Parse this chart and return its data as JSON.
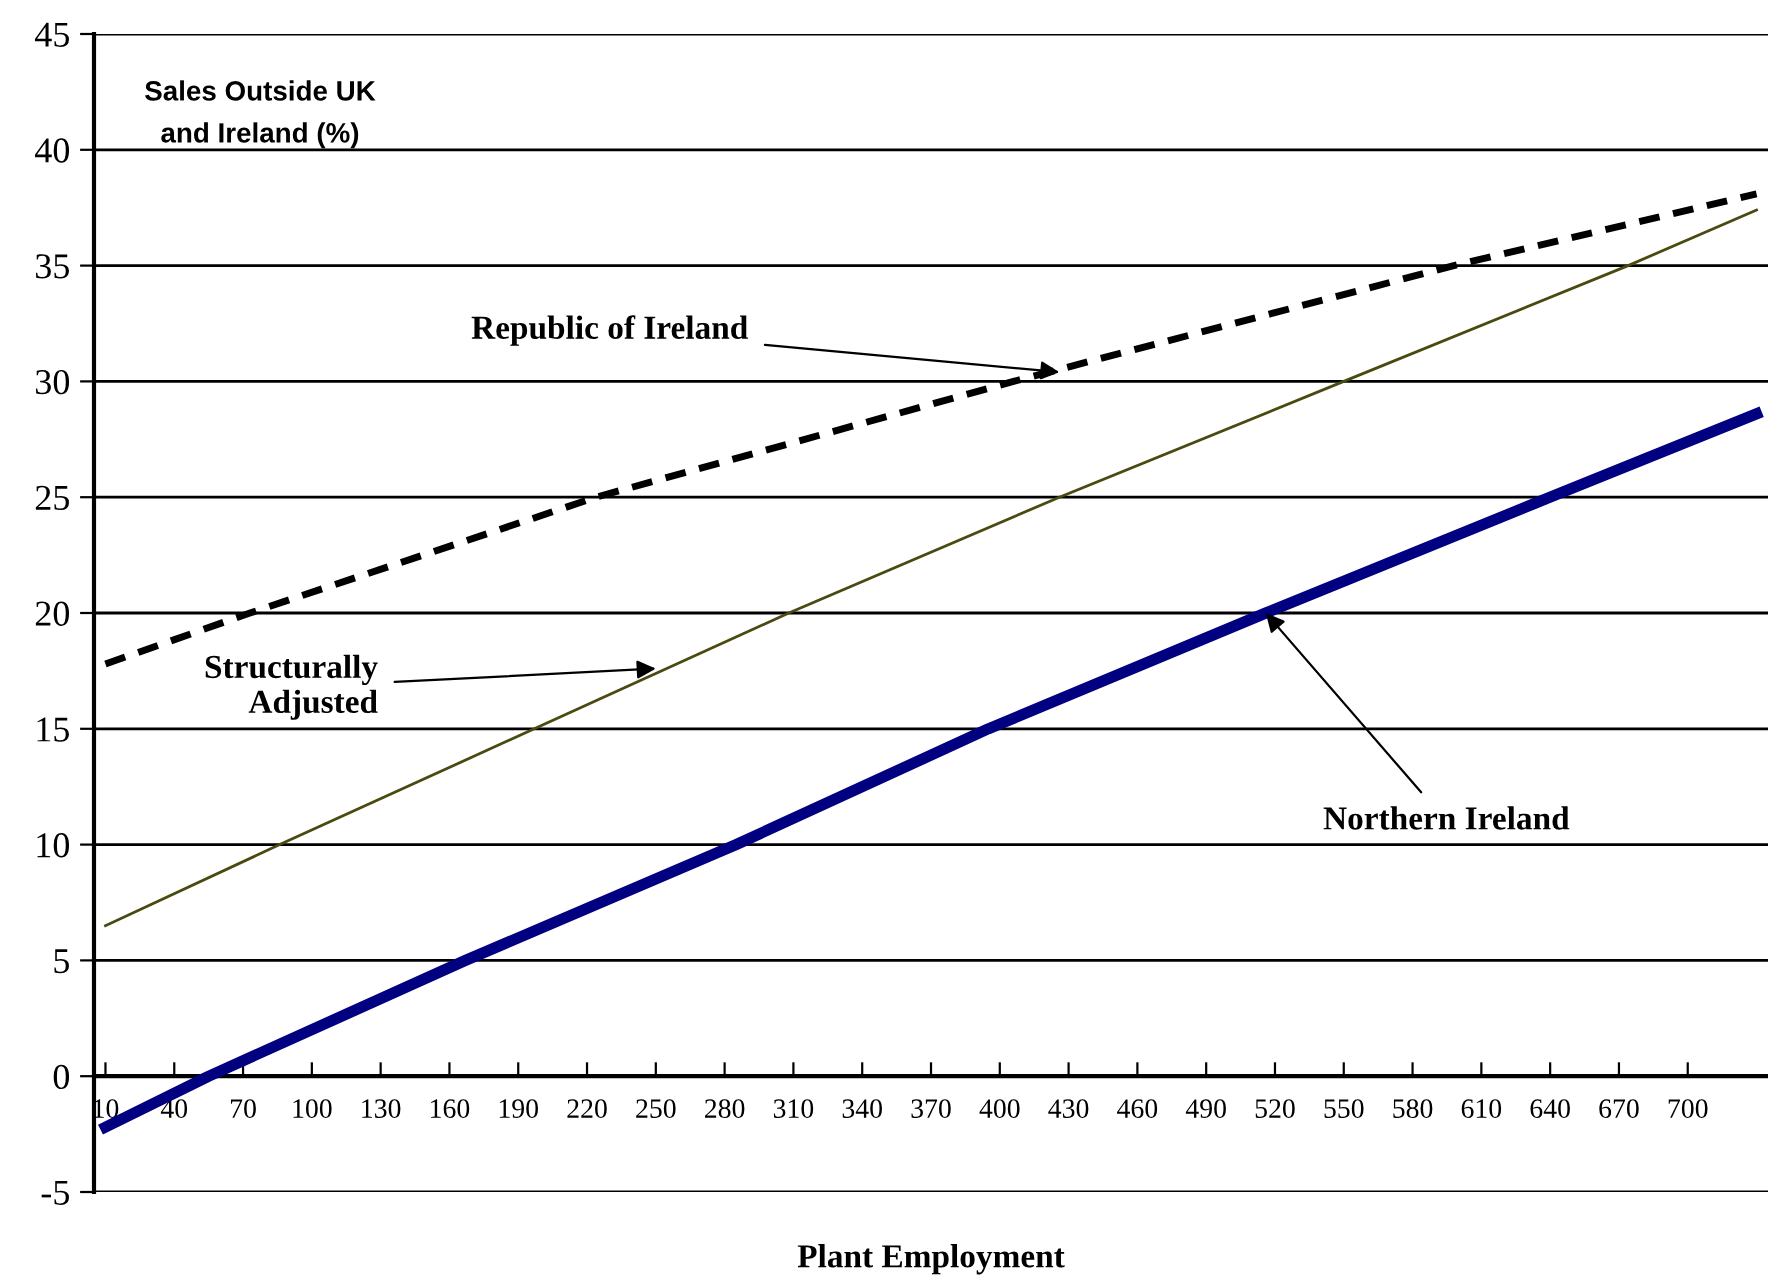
{
  "chart_data": {
    "type": "line",
    "ylabel": "Sales Outside UK\nand Ireland (%)",
    "xlabel": "Plant Employment",
    "xlim": [
      5,
      735
    ],
    "xticks": [
      10,
      40,
      70,
      100,
      130,
      160,
      190,
      220,
      250,
      280,
      310,
      340,
      370,
      400,
      430,
      460,
      490,
      520,
      550,
      580,
      610,
      640,
      670,
      700
    ],
    "ylim": [
      -5,
      45
    ],
    "yticks": [
      -5,
      0,
      5,
      10,
      15,
      20,
      25,
      30,
      35,
      40,
      45
    ],
    "grid": "y",
    "marker": "none",
    "series": [
      {
        "color": "#000000",
        "line_style": "dashed",
        "x": [
          10,
          73,
          224,
          406,
          598,
          730
        ],
        "values": [
          17.8,
          20,
          25,
          30,
          35,
          38.1
        ]
      },
      {
        "color": "#4a4a10",
        "line_style": "solid",
        "x": [
          10,
          86,
          197,
          308,
          426,
          550,
          674,
          730
        ],
        "values": [
          6.5,
          10,
          15,
          20,
          25,
          30,
          35,
          37.4
        ]
      },
      {
        "color": "#000080",
        "line_style": "solid",
        "x": [
          10,
          55,
          167,
          285,
          395,
          516,
          640,
          730
        ],
        "values": [
          -2.2,
          0,
          5,
          10,
          15,
          20,
          25,
          28.6
        ]
      }
    ],
    "annotations": [
      {
        "text": "Republic of Ireland",
        "x": 426,
        "y": 30.4
      },
      {
        "text": "Structurally\nAdjusted",
        "x": 250,
        "y": 17.6
      },
      {
        "text": "Northern Ireland",
        "x": 516,
        "y": 20
      }
    ]
  }
}
